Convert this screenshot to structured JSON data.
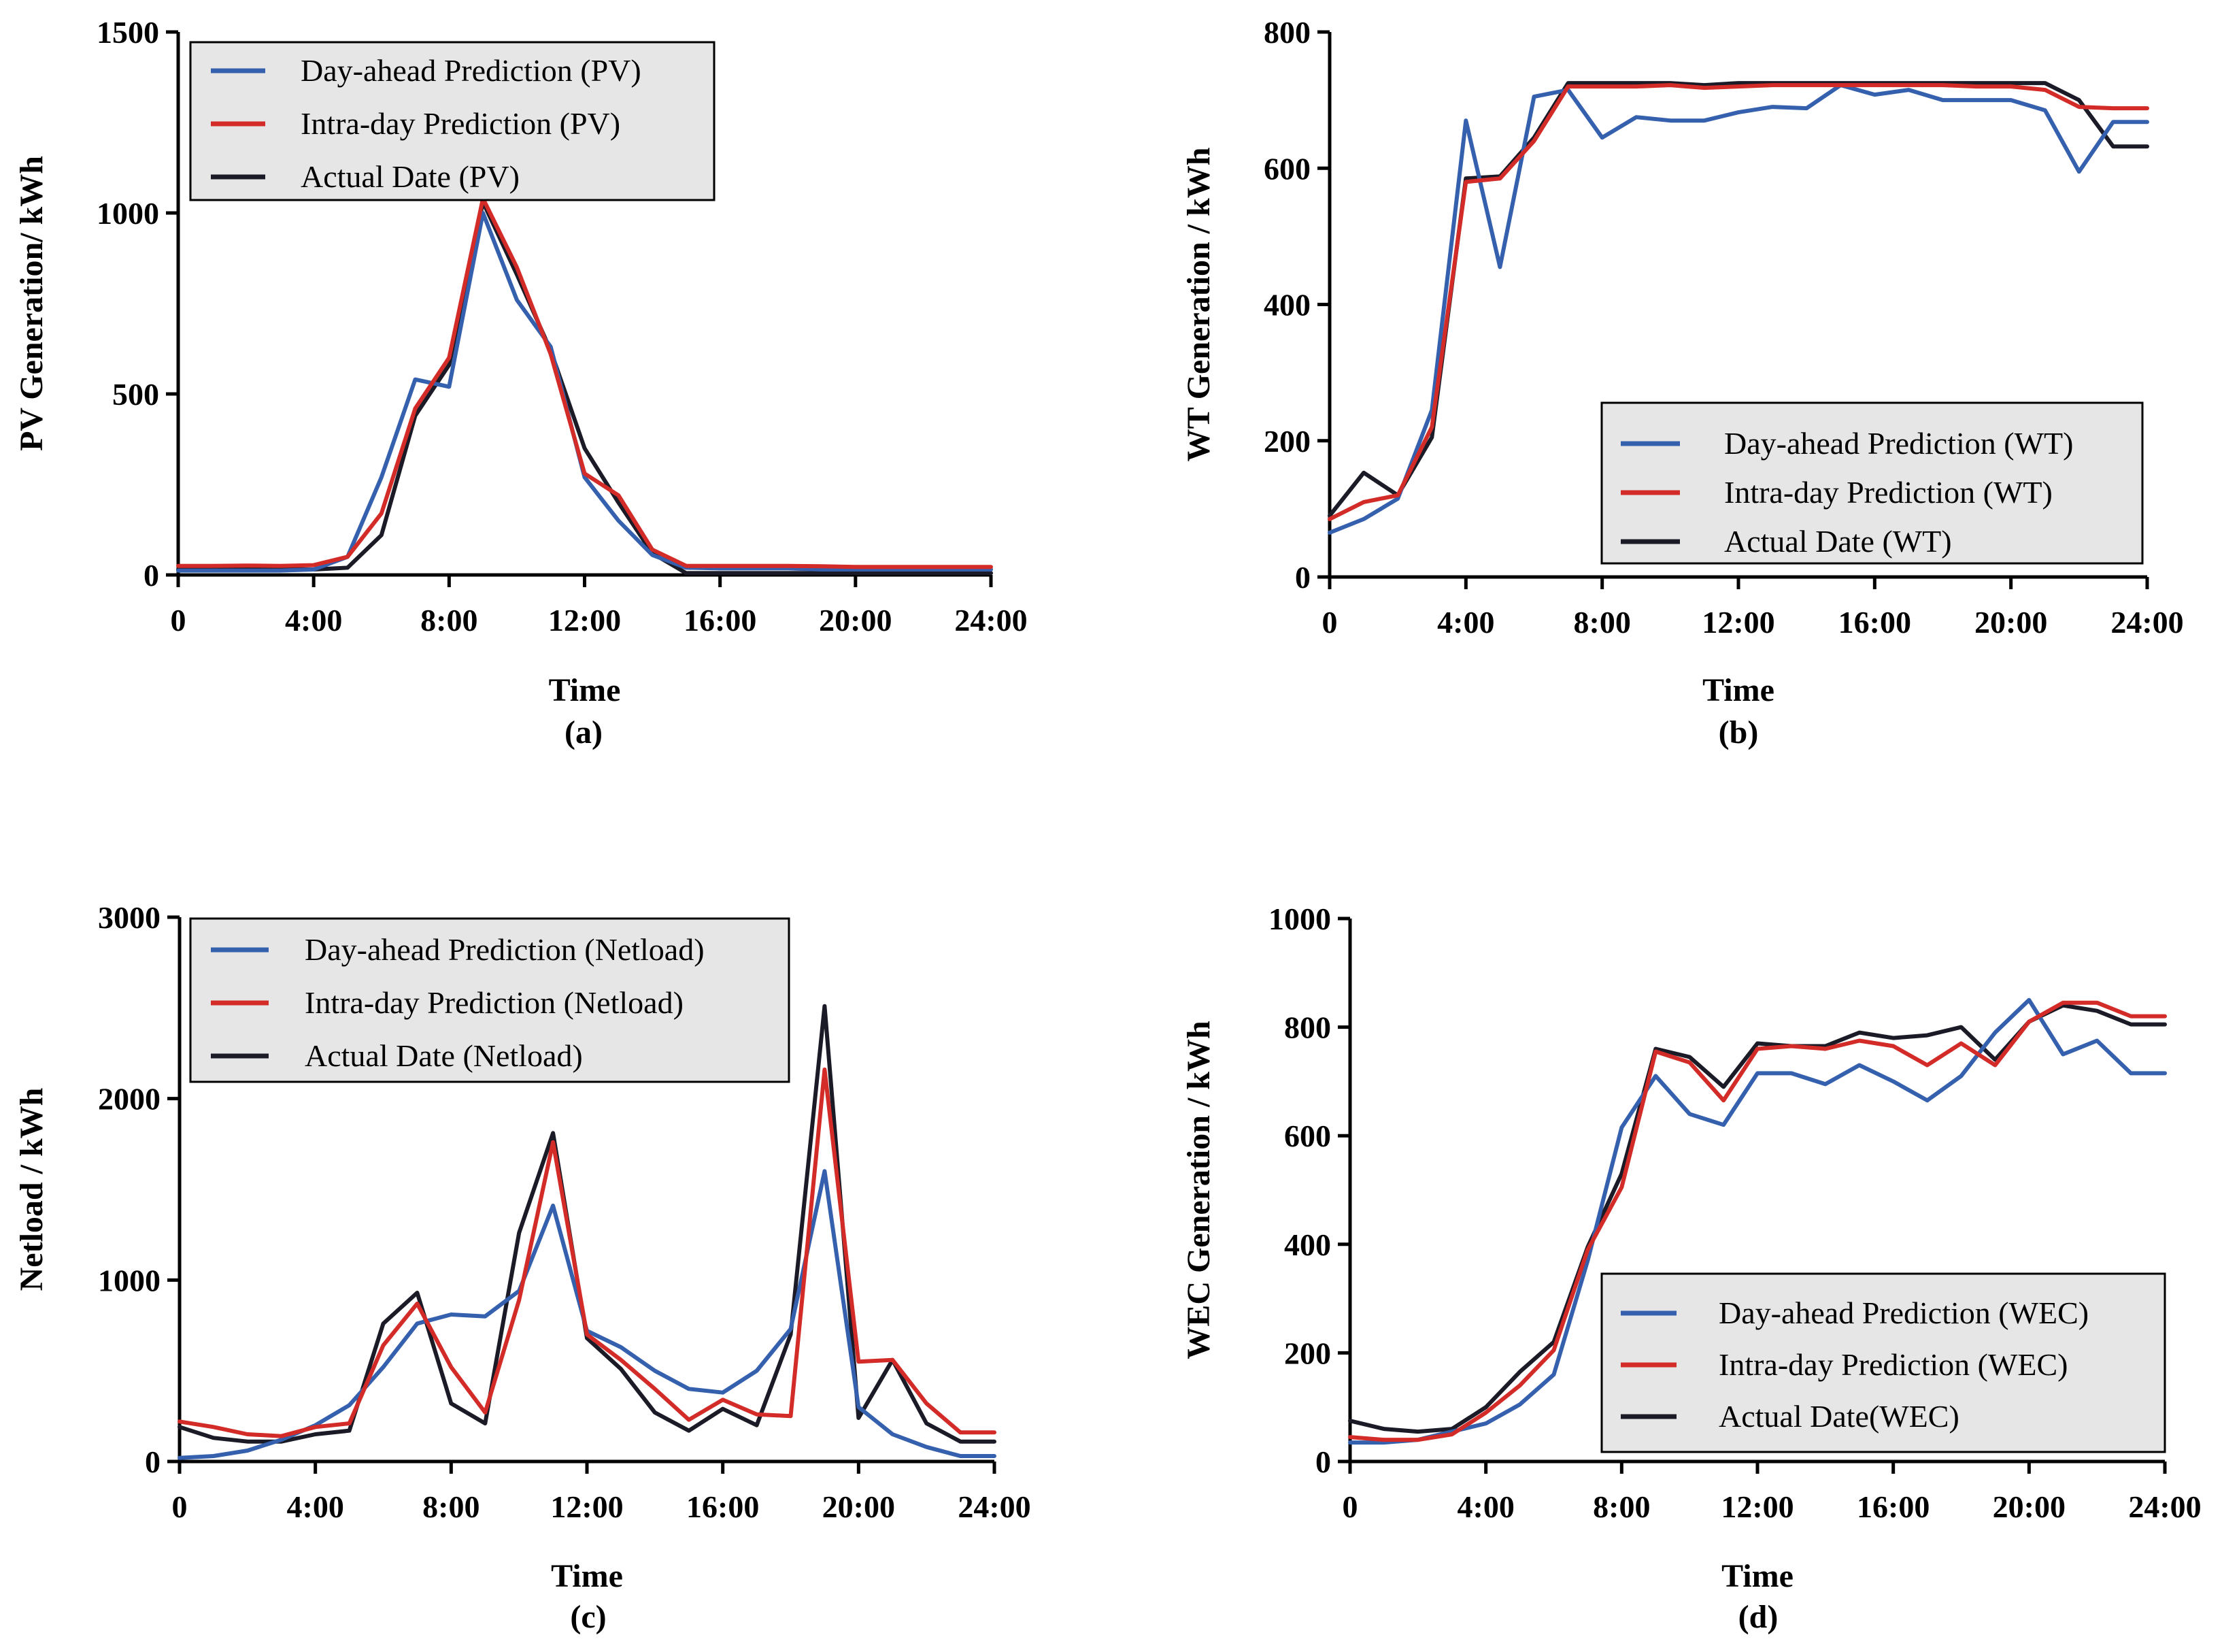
{
  "chart_data": [
    {
      "type": "line",
      "caption": "(a)",
      "xlabel": "Time",
      "ylabel": "PV  Generation/ kWh",
      "xlim": [
        0,
        24
      ],
      "ylim": [
        0,
        1500
      ],
      "xticks": [
        0,
        4,
        8,
        12,
        16,
        20,
        24
      ],
      "xtick_labels": [
        "0",
        "4:00",
        "8:00",
        "12:00",
        "16:00",
        "20:00",
        "24:00"
      ],
      "yticks": [
        0,
        500,
        1000,
        1500
      ],
      "ytick_labels": [
        "0",
        "500",
        "1000",
        "1500"
      ],
      "legend_position": "top-left",
      "x": [
        0,
        1,
        2,
        3,
        4,
        5,
        6,
        7,
        8,
        9,
        10,
        11,
        12,
        13,
        14,
        15,
        16,
        17,
        18,
        19,
        20,
        21,
        22,
        23,
        24
      ],
      "series": [
        {
          "name": "Day-ahead Prediction (PV)",
          "color": "#3560ad",
          "values": [
            12,
            12,
            12,
            12,
            15,
            50,
            270,
            540,
            520,
            1000,
            760,
            630,
            270,
            150,
            55,
            20,
            18,
            18,
            18,
            15,
            15,
            15,
            15,
            15,
            15
          ]
        },
        {
          "name": "Intra-day Prediction (PV)",
          "color": "#d32b27",
          "values": [
            25,
            25,
            26,
            25,
            27,
            50,
            170,
            460,
            600,
            1040,
            850,
            610,
            280,
            220,
            70,
            25,
            25,
            25,
            25,
            24,
            22,
            22,
            22,
            22,
            22
          ]
        },
        {
          "name": "Actual Date (PV)",
          "color": "#1b1b28",
          "values": [
            15,
            15,
            15,
            15,
            15,
            20,
            110,
            440,
            580,
            1030,
            830,
            620,
            350,
            200,
            60,
            5,
            5,
            5,
            5,
            5,
            5,
            5,
            5,
            5,
            5
          ]
        }
      ]
    },
    {
      "type": "line",
      "caption": "(b)",
      "xlabel": "Time",
      "ylabel": "WT Generation / kWh",
      "xlim": [
        0,
        24
      ],
      "ylim": [
        0,
        800
      ],
      "xticks": [
        0,
        4,
        8,
        12,
        16,
        20,
        24
      ],
      "xtick_labels": [
        "0",
        "4:00",
        "8:00",
        "12:00",
        "16:00",
        "20:00",
        "24:00"
      ],
      "yticks": [
        0,
        200,
        400,
        600,
        800
      ],
      "ytick_labels": [
        "0",
        "200",
        "400",
        "600",
        "800"
      ],
      "legend_position": "bottom-right",
      "x": [
        0,
        1,
        2,
        3,
        4,
        5,
        6,
        7,
        8,
        9,
        10,
        11,
        12,
        13,
        14,
        15,
        16,
        17,
        18,
        19,
        20,
        21,
        22,
        23,
        24
      ],
      "series": [
        {
          "name": "Day-ahead Prediction (WT)",
          "color": "#3560ad",
          "values": [
            65,
            85,
            115,
            245,
            670,
            455,
            705,
            715,
            645,
            675,
            670,
            670,
            682,
            690,
            688,
            722,
            708,
            715,
            700,
            700,
            700,
            685,
            595,
            668,
            668
          ]
        },
        {
          "name": "Intra-day Prediction (WT)",
          "color": "#d32b27",
          "values": [
            85,
            110,
            120,
            220,
            580,
            585,
            640,
            720,
            720,
            720,
            722,
            718,
            720,
            722,
            722,
            722,
            722,
            722,
            722,
            720,
            720,
            715,
            690,
            688,
            688
          ]
        },
        {
          "name": "Actual Date (WT)",
          "color": "#1b1b28",
          "values": [
            90,
            153,
            120,
            205,
            585,
            588,
            645,
            725,
            725,
            725,
            725,
            722,
            725,
            725,
            725,
            725,
            725,
            725,
            725,
            725,
            725,
            725,
            700,
            632,
            632
          ]
        }
      ]
    },
    {
      "type": "line",
      "caption": "(c)",
      "xlabel": "Time",
      "ylabel": "Netload  / kWh",
      "xlim": [
        0,
        24
      ],
      "ylim": [
        0,
        3000
      ],
      "xticks": [
        0,
        4,
        8,
        12,
        16,
        20,
        24
      ],
      "xtick_labels": [
        "0",
        "4:00",
        "8:00",
        "12:00",
        "16:00",
        "20:00",
        "24:00"
      ],
      "yticks": [
        0,
        1000,
        2000,
        3000
      ],
      "ytick_labels": [
        "0",
        "1000",
        "2000",
        "3000"
      ],
      "legend_position": "top-left",
      "x": [
        0,
        1,
        2,
        3,
        4,
        5,
        6,
        7,
        8,
        9,
        10,
        11,
        12,
        13,
        14,
        15,
        16,
        17,
        18,
        19,
        20,
        21,
        22,
        23,
        24
      ],
      "series": [
        {
          "name": "Day-ahead Prediction (Netload)",
          "color": "#3560ad",
          "values": [
            20,
            30,
            60,
            120,
            200,
            310,
            520,
            760,
            810,
            800,
            940,
            1410,
            720,
            630,
            500,
            400,
            380,
            500,
            730,
            1600,
            300,
            150,
            80,
            30,
            30
          ]
        },
        {
          "name": "Intra-day Prediction (Netload)",
          "color": "#d32b27",
          "values": [
            220,
            190,
            150,
            140,
            190,
            210,
            640,
            870,
            520,
            270,
            890,
            1760,
            700,
            560,
            400,
            230,
            340,
            260,
            250,
            2160,
            550,
            560,
            320,
            160,
            160
          ]
        },
        {
          "name": "Actual Date (Netload)",
          "color": "#1b1b28",
          "values": [
            190,
            130,
            110,
            110,
            150,
            170,
            760,
            930,
            320,
            210,
            1260,
            1810,
            680,
            510,
            270,
            170,
            290,
            200,
            700,
            2510,
            240,
            560,
            210,
            110,
            110
          ]
        }
      ]
    },
    {
      "type": "line",
      "caption": "(d)",
      "xlabel": "Time",
      "ylabel": "WEC Generation / kWh",
      "xlim": [
        0,
        24
      ],
      "ylim": [
        0,
        1000
      ],
      "xticks": [
        0,
        4,
        8,
        12,
        16,
        20,
        24
      ],
      "xtick_labels": [
        "0",
        "4:00",
        "8:00",
        "12:00",
        "16:00",
        "20:00",
        "24:00"
      ],
      "yticks": [
        0,
        200,
        400,
        600,
        800,
        1000
      ],
      "ytick_labels": [
        "0",
        "200",
        "400",
        "600",
        "800",
        "1000"
      ],
      "legend_position": "bottom-right",
      "x": [
        0,
        1,
        2,
        3,
        4,
        5,
        6,
        7,
        8,
        9,
        10,
        11,
        12,
        13,
        14,
        15,
        16,
        17,
        18,
        19,
        20,
        21,
        22,
        23,
        24
      ],
      "series": [
        {
          "name": "Day-ahead Prediction (WEC)",
          "color": "#3560ad",
          "values": [
            35,
            35,
            40,
            55,
            70,
            105,
            160,
            370,
            615,
            710,
            640,
            620,
            715,
            715,
            695,
            730,
            700,
            665,
            710,
            790,
            850,
            750,
            775,
            715,
            715
          ]
        },
        {
          "name": "Intra-day Prediction (WEC)",
          "color": "#d32b27",
          "values": [
            45,
            40,
            40,
            50,
            90,
            140,
            205,
            390,
            505,
            755,
            735,
            665,
            760,
            765,
            760,
            775,
            765,
            730,
            770,
            730,
            810,
            845,
            845,
            820,
            820
          ]
        },
        {
          "name": "Actual Date(WEC)",
          "color": "#1b1b28",
          "values": [
            75,
            60,
            55,
            60,
            100,
            165,
            220,
            395,
            530,
            760,
            745,
            690,
            770,
            765,
            765,
            790,
            780,
            785,
            800,
            740,
            810,
            840,
            830,
            805,
            805
          ]
        }
      ]
    }
  ]
}
